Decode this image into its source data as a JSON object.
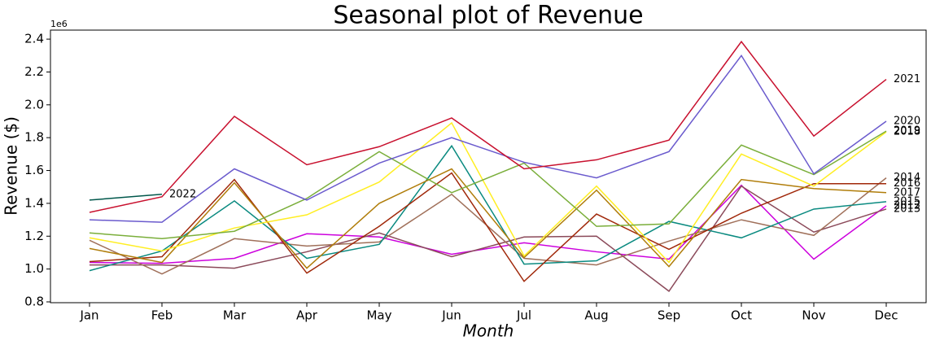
{
  "chart_data": {
    "type": "line",
    "title": "Seasonal plot of Revenue",
    "x_label": "Month",
    "y_label": "Revenue ($)",
    "y_offset_label": "1e6",
    "categories": [
      "Jan",
      "Feb",
      "Mar",
      "Apr",
      "May",
      "Jun",
      "Jul",
      "Aug",
      "Sep",
      "Oct",
      "Nov",
      "Dec"
    ],
    "ylim": [
      795000,
      2455000
    ],
    "yticks": [
      {
        "value": 800000,
        "label": "0.8"
      },
      {
        "value": 1000000,
        "label": "1.0"
      },
      {
        "value": 1200000,
        "label": "1.2"
      },
      {
        "value": 1400000,
        "label": "1.4"
      },
      {
        "value": 1600000,
        "label": "1.6"
      },
      {
        "value": 1800000,
        "label": "1.8"
      },
      {
        "value": 2000000,
        "label": "2.0"
      },
      {
        "value": 2200000,
        "label": "2.2"
      },
      {
        "value": 2400000,
        "label": "2.4"
      }
    ],
    "grid": false,
    "series": [
      {
        "name": "2012",
        "color": "#cc00dd",
        "values": [
          1040000,
          1035000,
          1065000,
          1215000,
          1195000,
          1090000,
          1160000,
          1105000,
          1060000,
          1510000,
          1060000,
          1385000
        ]
      },
      {
        "name": "2013",
        "color": "#8b4a5a",
        "values": [
          1025000,
          1025000,
          1005000,
          1105000,
          1220000,
          1075000,
          1195000,
          1200000,
          865000,
          1505000,
          1225000,
          1365000
        ]
      },
      {
        "name": "2014",
        "color": "#a0705a",
        "values": [
          1175000,
          970000,
          1185000,
          1140000,
          1165000,
          1455000,
          1065000,
          1025000,
          1170000,
          1300000,
          1205000,
          1555000
        ]
      },
      {
        "name": "2015",
        "color": "#0a8a80",
        "values": [
          990000,
          1110000,
          1415000,
          1065000,
          1150000,
          1750000,
          1030000,
          1050000,
          1290000,
          1190000,
          1365000,
          1410000
        ]
      },
      {
        "name": "2016",
        "color": "#a0280a",
        "values": [
          1045000,
          1075000,
          1545000,
          975000,
          1260000,
          1585000,
          925000,
          1335000,
          1120000,
          1340000,
          1520000,
          1520000
        ]
      },
      {
        "name": "2017",
        "color": "#b07d0a",
        "values": [
          1125000,
          1040000,
          1525000,
          1005000,
          1400000,
          1610000,
          1070000,
          1480000,
          1015000,
          1545000,
          1490000,
          1465000
        ]
      },
      {
        "name": "2018",
        "color": "#ffee22",
        "values": [
          1190000,
          1110000,
          1250000,
          1330000,
          1530000,
          1890000,
          1080000,
          1505000,
          1040000,
          1700000,
          1505000,
          1835000
        ]
      },
      {
        "name": "2019",
        "color": "#7aae3a",
        "values": [
          1220000,
          1185000,
          1230000,
          1430000,
          1715000,
          1465000,
          1645000,
          1260000,
          1275000,
          1755000,
          1575000,
          1840000
        ]
      },
      {
        "name": "2020",
        "color": "#6a5acd",
        "values": [
          1300000,
          1285000,
          1610000,
          1420000,
          1645000,
          1800000,
          1650000,
          1555000,
          1715000,
          2300000,
          1580000,
          1900000
        ]
      },
      {
        "name": "2021",
        "color": "#c8102e",
        "values": [
          1345000,
          1440000,
          1930000,
          1635000,
          1745000,
          1920000,
          1610000,
          1665000,
          1785000,
          2385000,
          1810000,
          2155000
        ]
      },
      {
        "name": "2022",
        "color": "#00574b",
        "values": [
          1420000,
          1455000,
          null,
          null,
          null,
          null,
          null,
          null,
          null,
          null,
          null,
          null
        ]
      }
    ]
  }
}
